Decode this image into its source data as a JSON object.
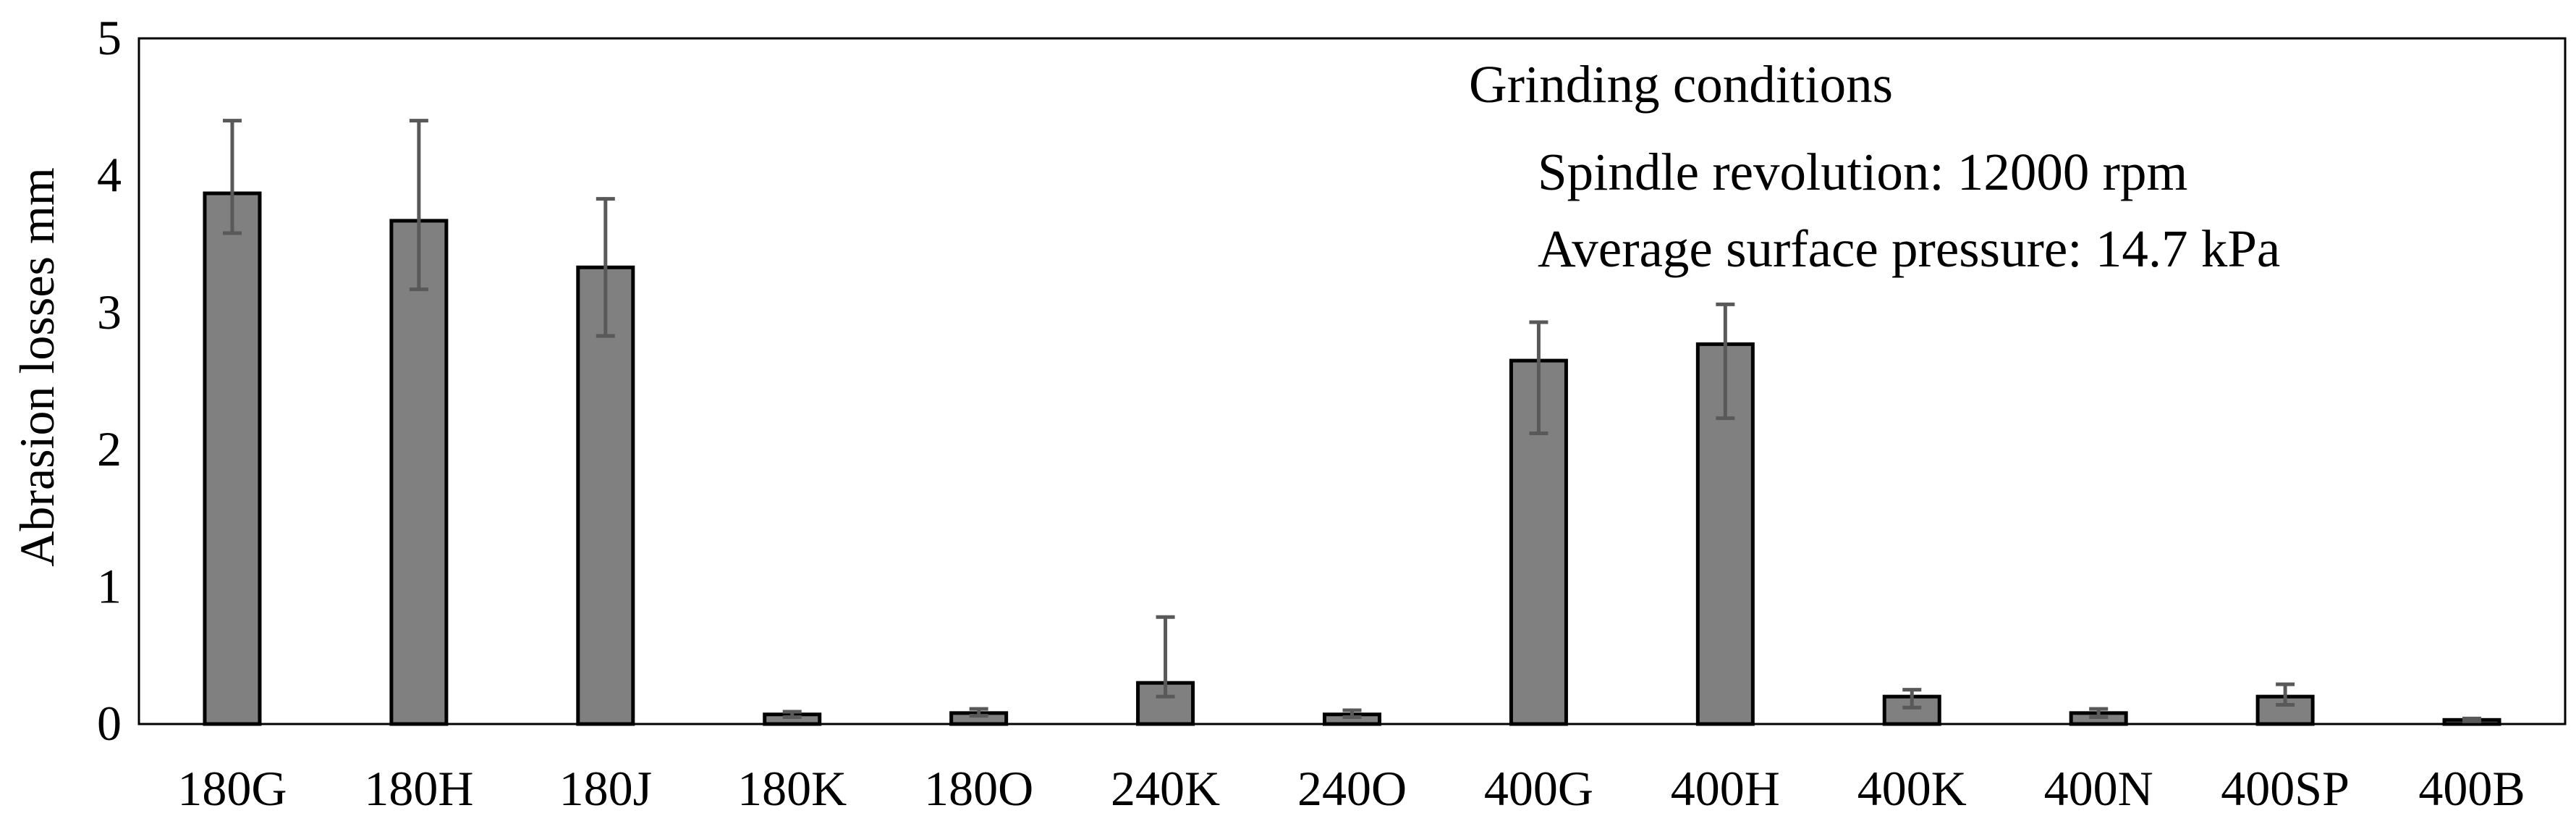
{
  "chart_data": {
    "type": "bar",
    "title": "",
    "xlabel": "",
    "ylabel": "Abrasion losses mm",
    "ylim": [
      0,
      5
    ],
    "yticks": [
      0,
      1,
      2,
      3,
      4,
      5
    ],
    "grid": false,
    "categories": [
      "180G",
      "180H",
      "180J",
      "180K",
      "180O",
      "240K",
      "240O",
      "400G",
      "400H",
      "400K",
      "400N",
      "400SP",
      "400B"
    ],
    "series": [
      {
        "values": [
          3.87,
          3.67,
          3.33,
          0.07,
          0.08,
          0.3,
          0.07,
          2.65,
          2.77,
          0.2,
          0.08,
          0.2,
          0.03
        ],
        "error_low": [
          3.58,
          3.17,
          2.83,
          0.05,
          0.06,
          0.2,
          0.05,
          2.12,
          2.23,
          0.12,
          0.05,
          0.14,
          0.02
        ],
        "error_high": [
          4.4,
          4.4,
          3.83,
          0.09,
          0.11,
          0.78,
          0.1,
          2.93,
          3.06,
          0.25,
          0.11,
          0.29,
          0.04
        ]
      }
    ],
    "annotation": {
      "heading": "Grinding conditions",
      "lines": [
        "Spindle revolution: 12000 rpm",
        "Average surface pressure: 14.7 kPa"
      ]
    },
    "colors": {
      "bar_fill": "#808080",
      "bar_stroke": "#000000",
      "error_bar": "#595959",
      "axis": "#000000"
    }
  }
}
